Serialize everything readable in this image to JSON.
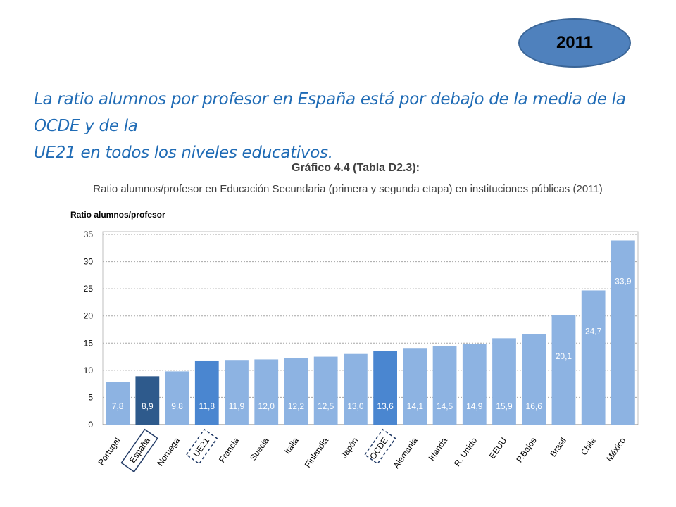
{
  "badge": {
    "year": "2011"
  },
  "headline": {
    "line1": "La ratio alumnos por profesor en España está por debajo de la media de la OCDE y de la",
    "line2": "UE21 en todos los niveles educativos."
  },
  "colors": {
    "bar_default": "#8db3e2",
    "bar_spain": "#2e5a8c",
    "bar_highlight": "#4a86d0",
    "label_text": "#ffffff",
    "frame": "#1f3864"
  },
  "chart_data": {
    "type": "bar",
    "title": "Gráfico 4.4 (Tabla D2.3):",
    "subtitle": "Ratio alumnos/profesor en Educación Secundaria (primera y segunda etapa) en instituciones públicas (2011)",
    "ylabel": "Ratio alumnos/profesor",
    "ylim": [
      0,
      35
    ],
    "yticks": [
      0,
      5,
      10,
      15,
      20,
      25,
      30,
      35
    ],
    "grid": true,
    "categories": [
      "Portugal",
      "España",
      "Noruega",
      "UE21",
      "Francia",
      "Suecia",
      "Italia",
      "Finlandia",
      "Japón",
      "OCDE",
      "Alemania",
      "Irlanda",
      "R. Unido",
      "EEUU",
      "P.Bajos",
      "Brasil",
      "Chile",
      "México"
    ],
    "values": [
      7.8,
      8.9,
      9.8,
      11.8,
      11.9,
      12.0,
      12.2,
      12.5,
      13.0,
      13.6,
      14.1,
      14.5,
      14.9,
      15.9,
      16.6,
      20.1,
      24.7,
      33.9
    ],
    "value_labels": [
      "7,8",
      "8,9",
      "9,8",
      "11,8",
      "11,9",
      "12,0",
      "12,2",
      "12,5",
      "13,0",
      "13,6",
      "14,1",
      "14,5",
      "14,9",
      "15,9",
      "16,6",
      "20,1",
      "24,7",
      "33,9"
    ],
    "highlight": {
      "España": "solid-frame",
      "UE21": "dashed-frame",
      "OCDE": "dashed-frame"
    }
  }
}
